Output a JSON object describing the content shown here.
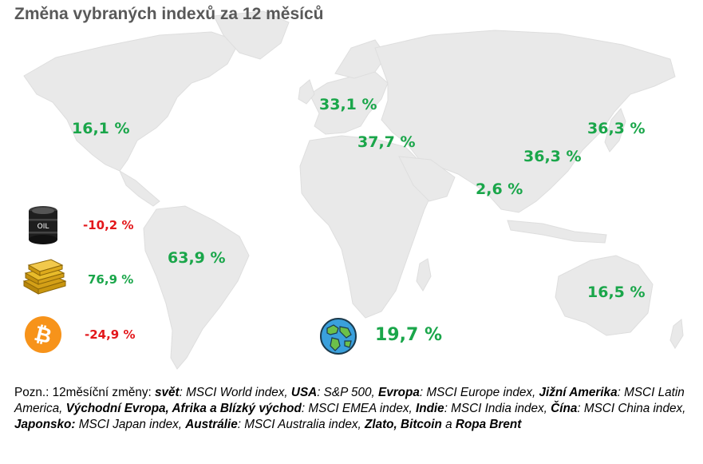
{
  "title": "Změna vybraných indexů za 12 měsíců",
  "colors": {
    "positive": "#1aa64a",
    "negative": "#e3171b",
    "land": "#e9e9e9",
    "title": "#595959"
  },
  "regions": {
    "usa": {
      "value": "16,1 %",
      "sign": "positive"
    },
    "europe": {
      "value": "33,1 %",
      "sign": "positive"
    },
    "emea": {
      "value": "37,7 %",
      "sign": "positive"
    },
    "japan": {
      "value": "36,3 %",
      "sign": "positive"
    },
    "china": {
      "value": "36,3 %",
      "sign": "positive"
    },
    "india": {
      "value": "2,6 %",
      "sign": "positive"
    },
    "latam": {
      "value": "63,9 %",
      "sign": "positive"
    },
    "australia": {
      "value": "16,5 %",
      "sign": "positive"
    },
    "world": {
      "value": "19,7 %",
      "sign": "positive"
    }
  },
  "assets": {
    "oil": {
      "icon": "oil-barrel-icon",
      "barrel_text": "OIL",
      "value": "-10,2 %",
      "sign": "negative"
    },
    "gold": {
      "icon": "gold-bars-icon",
      "value": "76,9 %",
      "sign": "positive"
    },
    "bitcoin": {
      "icon": "bitcoin-icon",
      "value": "-24,9 %",
      "sign": "negative"
    }
  },
  "world_icon": "globe-icon",
  "note": {
    "prefix": "Pozn.: 12měsíční změny: ",
    "items": [
      {
        "label": "svět",
        "label_italic": true,
        "text": ": MSCI World index, "
      },
      {
        "label": "USA",
        "label_italic": true,
        "text": ": S&P 500, "
      },
      {
        "label": "Evropa",
        "label_italic": true,
        "text": ": MSCI Europe index, "
      },
      {
        "label": "Jižní Amerika",
        "label_italic": true,
        "text": ": MSCI Latin America, "
      },
      {
        "label": "Východní Evropa, Afrika a Blízký východ",
        "label_italic": true,
        "text": ": MSCI EMEA index, "
      },
      {
        "label": "Indie",
        "label_italic": true,
        "text": ": MSCI India index, "
      },
      {
        "label": "Čína",
        "label_italic": true,
        "text": ": MSCI China index, "
      },
      {
        "label": "Japonsko:",
        "label_italic": true,
        "text": " MSCI Japan index, "
      },
      {
        "label": "Austrálie",
        "label_italic": true,
        "text": ": MSCI Australia index, "
      },
      {
        "label": "Zlato, Bitcoin",
        "label_italic": true,
        "text": " a "
      },
      {
        "label": "Ropa Brent",
        "label_italic": true,
        "text": ""
      }
    ]
  }
}
